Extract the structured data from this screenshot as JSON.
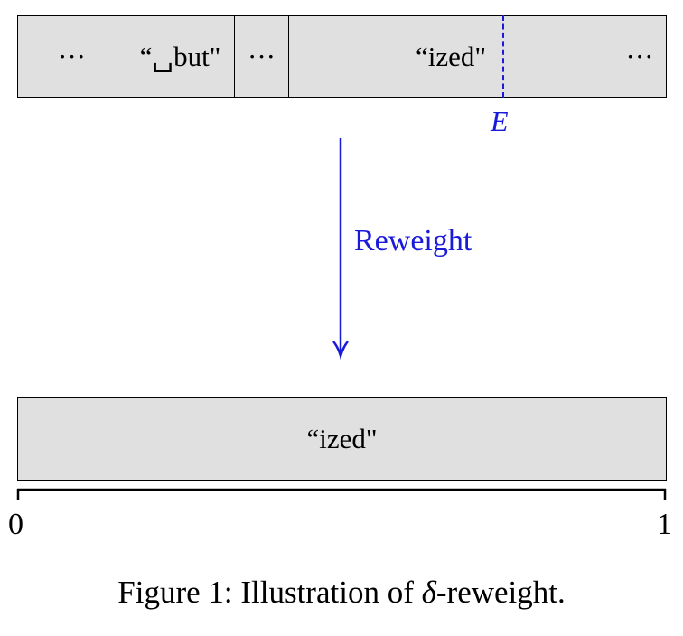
{
  "top_bar": {
    "cells": [
      "···",
      "“␣but\"",
      "···",
      "“ized\"",
      "···"
    ]
  },
  "marker": {
    "label": "E",
    "color": "#1a1adb"
  },
  "arrow": {
    "label": "Reweight",
    "color": "#1a1adb"
  },
  "bottom_bar": {
    "label": "“ized\""
  },
  "axis": {
    "start": "0",
    "end": "1"
  },
  "caption": {
    "prefix": "Figure 1: Illustration of ",
    "symbol": "δ",
    "suffix": "-reweight."
  },
  "colors": {
    "bar_fill": "#e0e0e0",
    "accent": "#1a1adb"
  }
}
